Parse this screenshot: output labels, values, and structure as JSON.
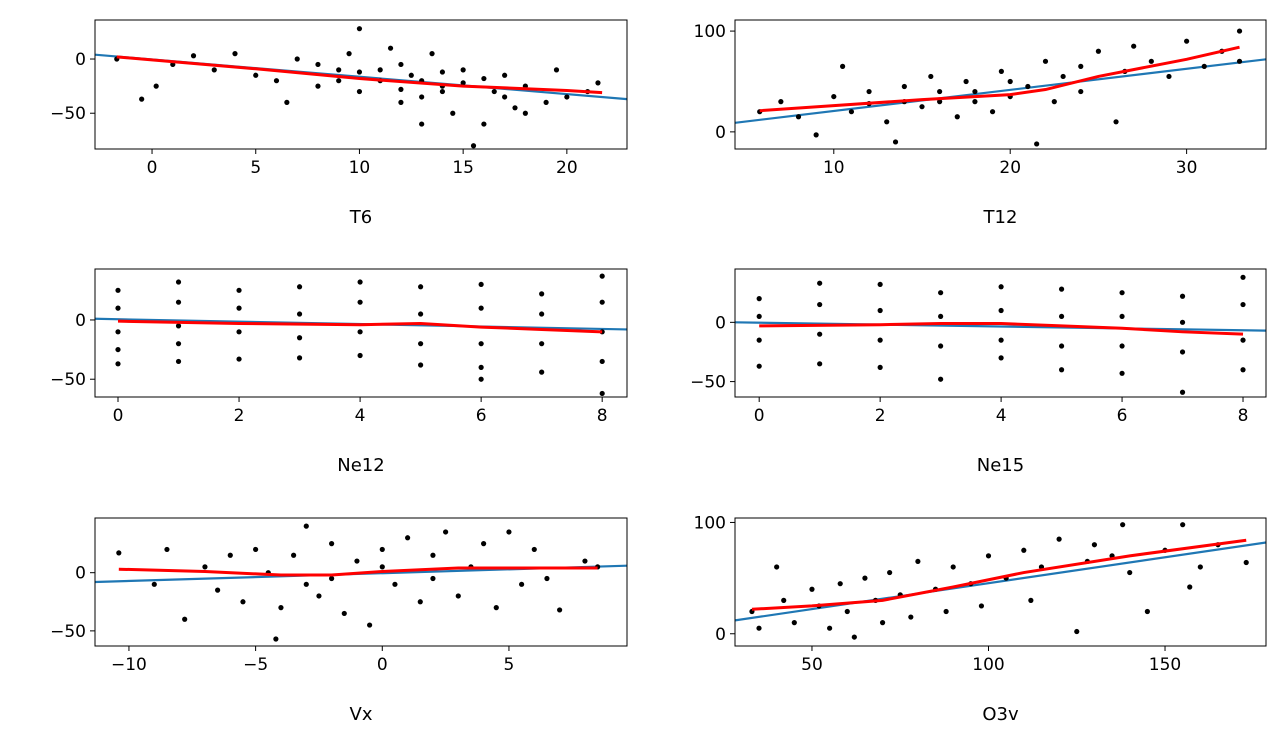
{
  "colors": {
    "points": "#000000",
    "linear_fit": "#1f77b4",
    "lowess": "#ff0000"
  },
  "chart_data": [
    {
      "type": "scatter",
      "xlabel": "T6",
      "xlim": [
        -2.75,
        22.9
      ],
      "ylim": [
        -83,
        36
      ],
      "xticks": [
        {
          "v": 0,
          "label": "0"
        },
        {
          "v": 5,
          "label": "5"
        },
        {
          "v": 10,
          "label": "10"
        },
        {
          "v": 15,
          "label": "15"
        },
        {
          "v": 20,
          "label": "20"
        }
      ],
      "yticks": [
        {
          "v": 0,
          "label": "0"
        },
        {
          "v": -50,
          "label": "−50"
        }
      ],
      "points": [
        [
          -1.7,
          0
        ],
        [
          -0.5,
          -37
        ],
        [
          0.2,
          -25
        ],
        [
          1,
          -5
        ],
        [
          2,
          3
        ],
        [
          3,
          -10
        ],
        [
          4,
          5
        ],
        [
          5,
          -15
        ],
        [
          6,
          -20
        ],
        [
          6.5,
          -40
        ],
        [
          7,
          0
        ],
        [
          8,
          -25
        ],
        [
          9,
          -10
        ],
        [
          9.5,
          5
        ],
        [
          10,
          28
        ],
        [
          10,
          -30
        ],
        [
          11,
          -20
        ],
        [
          11.5,
          10
        ],
        [
          12,
          -40
        ],
        [
          12.5,
          -15
        ],
        [
          13,
          -35
        ],
        [
          13.5,
          5
        ],
        [
          14,
          -25
        ],
        [
          14.5,
          -50
        ],
        [
          15,
          -10
        ],
        [
          15.5,
          -80
        ],
        [
          16,
          -60
        ],
        [
          16.5,
          -30
        ],
        [
          17,
          -15
        ],
        [
          17.5,
          -45
        ],
        [
          18,
          -25
        ],
        [
          19,
          -40
        ],
        [
          19.5,
          -10
        ],
        [
          20,
          -35
        ],
        [
          21,
          -30
        ],
        [
          21.5,
          -22
        ],
        [
          12,
          -5
        ],
        [
          13,
          -20
        ],
        [
          14,
          -30
        ],
        [
          11,
          -10
        ],
        [
          8,
          -5
        ],
        [
          9,
          -20
        ],
        [
          10,
          -12
        ],
        [
          12,
          -28
        ],
        [
          15,
          -22
        ],
        [
          16,
          -18
        ],
        [
          17,
          -35
        ],
        [
          18,
          -50
        ],
        [
          13,
          -60
        ],
        [
          14,
          -12
        ]
      ],
      "linear_fit": [
        [
          -2.75,
          4
        ],
        [
          22.9,
          -37
        ]
      ],
      "lowess": [
        [
          -1.7,
          2
        ],
        [
          5,
          -9
        ],
        [
          10,
          -18
        ],
        [
          15,
          -25
        ],
        [
          20,
          -29
        ],
        [
          21.7,
          -31
        ]
      ]
    },
    {
      "type": "scatter",
      "xlabel": "T12",
      "xlim": [
        4.4,
        34.5
      ],
      "ylim": [
        -17,
        111
      ],
      "xticks": [
        {
          "v": 10,
          "label": "10"
        },
        {
          "v": 20,
          "label": "20"
        },
        {
          "v": 30,
          "label": "30"
        }
      ],
      "yticks": [
        {
          "v": 0,
          "label": "0"
        },
        {
          "v": 100,
          "label": "100"
        }
      ],
      "points": [
        [
          5.8,
          20
        ],
        [
          7,
          30
        ],
        [
          8,
          15
        ],
        [
          9,
          -3
        ],
        [
          10,
          35
        ],
        [
          10.5,
          65
        ],
        [
          11,
          20
        ],
        [
          12,
          40
        ],
        [
          13,
          10
        ],
        [
          13.5,
          -10
        ],
        [
          14,
          45
        ],
        [
          15,
          25
        ],
        [
          15.5,
          55
        ],
        [
          16,
          30
        ],
        [
          17,
          15
        ],
        [
          17.5,
          50
        ],
        [
          18,
          40
        ],
        [
          19,
          20
        ],
        [
          19.5,
          60
        ],
        [
          20,
          35
        ],
        [
          21,
          45
        ],
        [
          21.5,
          -12
        ],
        [
          22,
          70
        ],
        [
          22.5,
          30
        ],
        [
          23,
          55
        ],
        [
          24,
          40
        ],
        [
          25,
          80
        ],
        [
          26,
          10
        ],
        [
          26.5,
          60
        ],
        [
          27,
          85
        ],
        [
          28,
          70
        ],
        [
          29,
          55
        ],
        [
          30,
          90
        ],
        [
          31,
          65
        ],
        [
          32,
          80
        ],
        [
          33,
          100
        ],
        [
          33,
          70
        ],
        [
          18,
          30
        ],
        [
          20,
          50
        ],
        [
          16,
          40
        ],
        [
          24,
          65
        ],
        [
          14,
          30
        ],
        [
          12,
          28
        ]
      ],
      "linear_fit": [
        [
          4.4,
          9
        ],
        [
          34.5,
          72
        ]
      ],
      "lowess": [
        [
          5.8,
          21
        ],
        [
          10,
          26
        ],
        [
          15,
          32
        ],
        [
          20,
          37
        ],
        [
          22,
          42
        ],
        [
          25,
          55
        ],
        [
          30,
          72
        ],
        [
          33,
          84
        ]
      ]
    },
    {
      "type": "scatter",
      "xlabel": "Ne12",
      "xlim": [
        -0.38,
        8.41
      ],
      "ylim": [
        -65,
        43
      ],
      "xticks": [
        {
          "v": 0,
          "label": "0"
        },
        {
          "v": 2,
          "label": "2"
        },
        {
          "v": 4,
          "label": "4"
        },
        {
          "v": 6,
          "label": "6"
        },
        {
          "v": 8,
          "label": "8"
        }
      ],
      "yticks": [
        {
          "v": 0,
          "label": "0"
        },
        {
          "v": -50,
          "label": "−50"
        }
      ],
      "points": [
        [
          0,
          25
        ],
        [
          0,
          10
        ],
        [
          0,
          -10
        ],
        [
          0,
          -25
        ],
        [
          0,
          -37
        ],
        [
          1,
          32
        ],
        [
          1,
          15
        ],
        [
          1,
          -5
        ],
        [
          1,
          -20
        ],
        [
          1,
          -35
        ],
        [
          2,
          25
        ],
        [
          2,
          10
        ],
        [
          2,
          -10
        ],
        [
          2,
          -33
        ],
        [
          3,
          28
        ],
        [
          3,
          5
        ],
        [
          3,
          -15
        ],
        [
          3,
          -32
        ],
        [
          4,
          32
        ],
        [
          4,
          15
        ],
        [
          4,
          -10
        ],
        [
          4,
          -30
        ],
        [
          5,
          28
        ],
        [
          5,
          5
        ],
        [
          5,
          -20
        ],
        [
          5,
          -38
        ],
        [
          6,
          30
        ],
        [
          6,
          10
        ],
        [
          6,
          -20
        ],
        [
          6,
          -40
        ],
        [
          6,
          -50
        ],
        [
          7,
          22
        ],
        [
          7,
          5
        ],
        [
          7,
          -20
        ],
        [
          7,
          -44
        ],
        [
          8,
          37
        ],
        [
          8,
          15
        ],
        [
          8,
          -10
        ],
        [
          8,
          -35
        ],
        [
          8,
          -62
        ]
      ],
      "linear_fit": [
        [
          -0.38,
          1
        ],
        [
          8.41,
          -8
        ]
      ],
      "lowess": [
        [
          0,
          -1
        ],
        [
          2,
          -3
        ],
        [
          4,
          -4
        ],
        [
          5,
          -3
        ],
        [
          6,
          -6
        ],
        [
          7,
          -8
        ],
        [
          8,
          -10
        ]
      ]
    },
    {
      "type": "scatter",
      "xlabel": "Ne15",
      "xlim": [
        -0.4,
        8.38
      ],
      "ylim": [
        -63,
        45
      ],
      "xticks": [
        {
          "v": 0,
          "label": "0"
        },
        {
          "v": 2,
          "label": "2"
        },
        {
          "v": 4,
          "label": "4"
        },
        {
          "v": 6,
          "label": "6"
        },
        {
          "v": 8,
          "label": "8"
        }
      ],
      "yticks": [
        {
          "v": 0,
          "label": "0"
        },
        {
          "v": -50,
          "label": "−50"
        }
      ],
      "points": [
        [
          0,
          20
        ],
        [
          0,
          5
        ],
        [
          0,
          -15
        ],
        [
          0,
          -37
        ],
        [
          1,
          33
        ],
        [
          1,
          15
        ],
        [
          1,
          -10
        ],
        [
          1,
          -35
        ],
        [
          2,
          32
        ],
        [
          2,
          10
        ],
        [
          2,
          -15
        ],
        [
          2,
          -38
        ],
        [
          3,
          25
        ],
        [
          3,
          5
        ],
        [
          3,
          -20
        ],
        [
          3,
          -48
        ],
        [
          4,
          30
        ],
        [
          4,
          10
        ],
        [
          4,
          -15
        ],
        [
          4,
          -30
        ],
        [
          5,
          28
        ],
        [
          5,
          5
        ],
        [
          5,
          -20
        ],
        [
          5,
          -40
        ],
        [
          6,
          25
        ],
        [
          6,
          5
        ],
        [
          6,
          -20
        ],
        [
          6,
          -43
        ],
        [
          7,
          22
        ],
        [
          7,
          0
        ],
        [
          7,
          -25
        ],
        [
          7,
          -59
        ],
        [
          8,
          38
        ],
        [
          8,
          15
        ],
        [
          8,
          -15
        ],
        [
          8,
          -40
        ]
      ],
      "linear_fit": [
        [
          -0.4,
          0
        ],
        [
          8.38,
          -7
        ]
      ],
      "lowess": [
        [
          0,
          -3
        ],
        [
          2,
          -2
        ],
        [
          3,
          -1
        ],
        [
          4,
          -1
        ],
        [
          5,
          -3
        ],
        [
          6,
          -5
        ],
        [
          7,
          -8
        ],
        [
          8,
          -10
        ]
      ]
    },
    {
      "type": "scatter",
      "xlabel": "Vx",
      "xlim": [
        -11.34,
        9.66
      ],
      "ylim": [
        -63,
        47
      ],
      "xticks": [
        {
          "v": -10,
          "label": "−10"
        },
        {
          "v": -5,
          "label": "−5"
        },
        {
          "v": 0,
          "label": "0"
        },
        {
          "v": 5,
          "label": "5"
        }
      ],
      "yticks": [
        {
          "v": 0,
          "label": "0"
        },
        {
          "v": -50,
          "label": "−50"
        }
      ],
      "points": [
        [
          -10.4,
          17
        ],
        [
          -9,
          -10
        ],
        [
          -8.5,
          20
        ],
        [
          -7.8,
          -40
        ],
        [
          -7,
          5
        ],
        [
          -6.5,
          -15
        ],
        [
          -6,
          15
        ],
        [
          -5.5,
          -25
        ],
        [
          -5,
          20
        ],
        [
          -4.5,
          0
        ],
        [
          -4.2,
          -57
        ],
        [
          -4,
          -30
        ],
        [
          -3.5,
          15
        ],
        [
          -3,
          40
        ],
        [
          -2.5,
          -20
        ],
        [
          -2,
          25
        ],
        [
          -1.5,
          -35
        ],
        [
          -1,
          10
        ],
        [
          -0.5,
          -45
        ],
        [
          0,
          20
        ],
        [
          0.5,
          -10
        ],
        [
          1,
          30
        ],
        [
          1.5,
          -25
        ],
        [
          2,
          15
        ],
        [
          2.5,
          35
        ],
        [
          3,
          -20
        ],
        [
          3.5,
          5
        ],
        [
          4,
          25
        ],
        [
          4.5,
          -30
        ],
        [
          5,
          35
        ],
        [
          5.5,
          -10
        ],
        [
          6,
          20
        ],
        [
          6.5,
          -5
        ],
        [
          7,
          -32
        ],
        [
          8,
          10
        ],
        [
          8.5,
          5
        ],
        [
          -2,
          -5
        ],
        [
          0,
          5
        ],
        [
          2,
          -5
        ],
        [
          -3,
          -10
        ]
      ],
      "linear_fit": [
        [
          -11.34,
          -8
        ],
        [
          9.66,
          6
        ]
      ],
      "lowess": [
        [
          -10.4,
          3
        ],
        [
          -7,
          1
        ],
        [
          -4,
          -2
        ],
        [
          -2,
          -2
        ],
        [
          0,
          1
        ],
        [
          3,
          4
        ],
        [
          6,
          4
        ],
        [
          8.5,
          4
        ]
      ]
    },
    {
      "type": "scatter",
      "xlabel": "O3v",
      "xlim": [
        28.2,
        178.6
      ],
      "ylim": [
        -11,
        104
      ],
      "xticks": [
        {
          "v": 50,
          "label": "50"
        },
        {
          "v": 100,
          "label": "100"
        },
        {
          "v": 150,
          "label": "150"
        }
      ],
      "yticks": [
        {
          "v": 0,
          "label": "0"
        },
        {
          "v": 100,
          "label": "100"
        }
      ],
      "points": [
        [
          33,
          20
        ],
        [
          35,
          5
        ],
        [
          40,
          60
        ],
        [
          42,
          30
        ],
        [
          45,
          10
        ],
        [
          50,
          40
        ],
        [
          52,
          25
        ],
        [
          55,
          5
        ],
        [
          58,
          45
        ],
        [
          60,
          20
        ],
        [
          62,
          -3
        ],
        [
          65,
          50
        ],
        [
          68,
          30
        ],
        [
          70,
          10
        ],
        [
          72,
          55
        ],
        [
          75,
          35
        ],
        [
          78,
          15
        ],
        [
          80,
          65
        ],
        [
          85,
          40
        ],
        [
          88,
          20
        ],
        [
          90,
          60
        ],
        [
          95,
          45
        ],
        [
          98,
          25
        ],
        [
          100,
          70
        ],
        [
          105,
          50
        ],
        [
          110,
          75
        ],
        [
          112,
          30
        ],
        [
          115,
          60
        ],
        [
          120,
          85
        ],
        [
          125,
          2
        ],
        [
          128,
          65
        ],
        [
          130,
          80
        ],
        [
          135,
          70
        ],
        [
          138,
          98
        ],
        [
          140,
          55
        ],
        [
          145,
          20
        ],
        [
          150,
          75
        ],
        [
          155,
          98
        ],
        [
          157,
          42
        ],
        [
          160,
          60
        ],
        [
          165,
          80
        ],
        [
          173,
          64
        ]
      ],
      "linear_fit": [
        [
          28.2,
          12
        ],
        [
          178.6,
          82
        ]
      ],
      "lowess": [
        [
          33,
          22
        ],
        [
          50,
          25
        ],
        [
          70,
          30
        ],
        [
          90,
          42
        ],
        [
          110,
          55
        ],
        [
          140,
          70
        ],
        [
          173,
          84
        ]
      ]
    }
  ]
}
